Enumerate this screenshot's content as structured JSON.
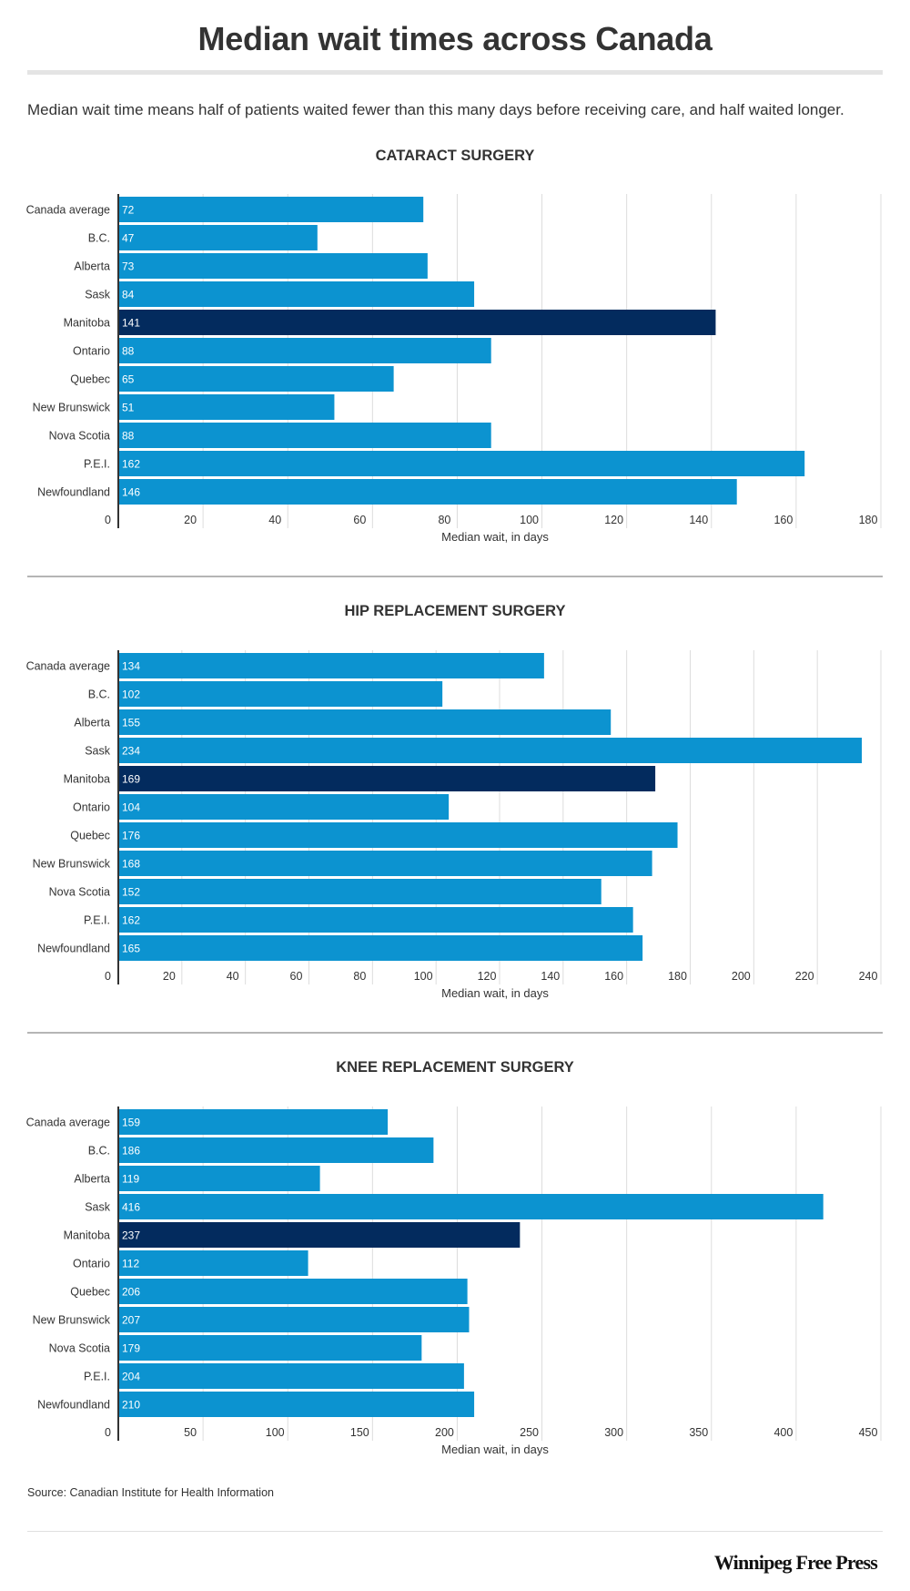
{
  "header": {
    "title": "Median wait times across Canada",
    "subtitle": "Median wait time means half of patients waited fewer than this many days before receiving care, and half waited longer."
  },
  "colors": {
    "bar": "#0c93d0",
    "highlight": "#032b5e",
    "grid": "#dddddd",
    "axis": "#333333"
  },
  "chart_data": [
    {
      "type": "bar",
      "orientation": "horizontal",
      "title": "CATARACT SURGERY",
      "xlabel": "Median wait, in days",
      "categories": [
        "Canada average",
        "B.C.",
        "Alberta",
        "Sask",
        "Manitoba",
        "Ontario",
        "Quebec",
        "New Brunswick",
        "Nova Scotia",
        "P.E.I.",
        "Newfoundland"
      ],
      "values": [
        72,
        47,
        73,
        84,
        141,
        88,
        65,
        51,
        88,
        162,
        146
      ],
      "highlight": "Manitoba",
      "xlim": [
        0,
        180
      ],
      "xticks": [
        0,
        20,
        40,
        60,
        80,
        100,
        120,
        140,
        160,
        180
      ],
      "grid": true
    },
    {
      "type": "bar",
      "orientation": "horizontal",
      "title": "HIP REPLACEMENT SURGERY",
      "xlabel": "Median wait, in days",
      "categories": [
        "Canada average",
        "B.C.",
        "Alberta",
        "Sask",
        "Manitoba",
        "Ontario",
        "Quebec",
        "New Brunswick",
        "Nova Scotia",
        "P.E.I.",
        "Newfoundland"
      ],
      "values": [
        134,
        102,
        155,
        234,
        169,
        104,
        176,
        168,
        152,
        162,
        165
      ],
      "highlight": "Manitoba",
      "xlim": [
        0,
        240
      ],
      "xticks": [
        0,
        20,
        40,
        60,
        80,
        100,
        120,
        140,
        160,
        180,
        200,
        220,
        240
      ],
      "grid": true
    },
    {
      "type": "bar",
      "orientation": "horizontal",
      "title": "KNEE REPLACEMENT SURGERY",
      "xlabel": "Median wait, in days",
      "categories": [
        "Canada average",
        "B.C.",
        "Alberta",
        "Sask",
        "Manitoba",
        "Ontario",
        "Quebec",
        "New Brunswick",
        "Nova Scotia",
        "P.E.I.",
        "Newfoundland"
      ],
      "values": [
        159,
        186,
        119,
        416,
        237,
        112,
        206,
        207,
        179,
        204,
        210
      ],
      "highlight": "Manitoba",
      "xlim": [
        0,
        450
      ],
      "xticks": [
        0,
        50,
        100,
        150,
        200,
        250,
        300,
        350,
        400,
        450
      ],
      "grid": true
    }
  ],
  "footer": {
    "source": "Source: Canadian Institute for Health Information",
    "logo_text": "Winnipeg Free Press"
  }
}
